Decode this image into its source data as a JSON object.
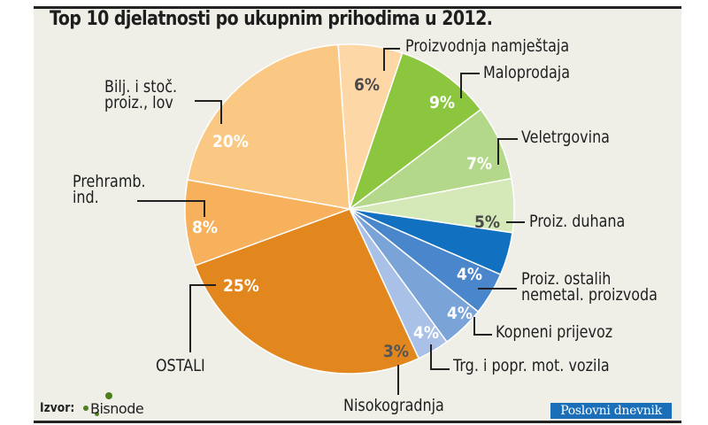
{
  "title": "Top 10 djelatnosti po ukupnim prihodima u 2012.",
  "source_label": "Izvor:",
  "source_name": "Bisnode",
  "publisher": "Poslovni dnevnik",
  "chart_data": {
    "type": "pie",
    "title": "Top 10 djelatnosti po ukupnim prihodima u 2012.",
    "unit": "%",
    "start_angle_deg": -4,
    "direction": "clockwise",
    "slices": [
      {
        "label": "Proizvodnja namještaja",
        "value": 6,
        "color": "#fdd7a6",
        "text_color": "#4a4a4a"
      },
      {
        "label": "Maloprodaja",
        "value": 9,
        "color": "#8cc63f",
        "text_color": "#ffffff"
      },
      {
        "label": "Veletrgovina",
        "value": 7,
        "color": "#b3d88a",
        "text_color": "#ffffff"
      },
      {
        "label": "Proiz. duhana",
        "value": 5,
        "color": "#d4e8b8",
        "text_color": "#4a4a4a"
      },
      {
        "label": "Proiz. ostalih nemetal. proizvoda",
        "value": 4,
        "color": "#1170c0",
        "text_color": "#ffffff"
      },
      {
        "label": "Kopneni prijevoz",
        "value": 4,
        "color": "#4a86cc",
        "text_color": "#ffffff"
      },
      {
        "label": "Trg. i popr. mot. vozila",
        "value": 4,
        "color": "#7aa3d8",
        "text_color": "#ffffff"
      },
      {
        "label": "Nisokogradnja",
        "value": 3,
        "color": "#a9c1e6",
        "text_color": "#555555"
      },
      {
        "label": "OSTALI",
        "value": 25,
        "color": "#e2861e",
        "text_color": "#ffffff"
      },
      {
        "label": "Prehramb. ind.",
        "value": 8,
        "color": "#f7b05c",
        "text_color": "#ffffff"
      },
      {
        "label": "Bilj. i stoč. proiz., lov",
        "value": 20,
        "color": "#fbc884",
        "text_color": "#ffffff"
      }
    ]
  },
  "labels": {
    "namjestaj": "Proizvodnja namještaja",
    "maloprodaja": "Maloprodaja",
    "veletrgovina": "Veletrgovina",
    "duhan": "Proiz. duhana",
    "nemetal_1": "Proiz. ostalih",
    "nemetal_2": "nemetal. proizvoda",
    "kopneni": "Kopneni prijevoz",
    "trg": "Trg. i popr. mot. vozila",
    "niskogradnja": "Nisokogradnja",
    "ostali": "OSTALI",
    "prehramb_1": "Prehramb.",
    "prehramb_2": "ind.",
    "bilj_1": "Bilj. i stoč.",
    "bilj_2": "proiz., lov"
  },
  "pcts": {
    "namjestaj": "6%",
    "maloprodaja": "9%",
    "veletrgovina": "7%",
    "duhan": "5%",
    "nemetal": "4%",
    "kopneni": "4%",
    "trg": "4%",
    "niskogradnja": "3%",
    "ostali": "25%",
    "prehramb": "8%",
    "bilj": "20%"
  }
}
